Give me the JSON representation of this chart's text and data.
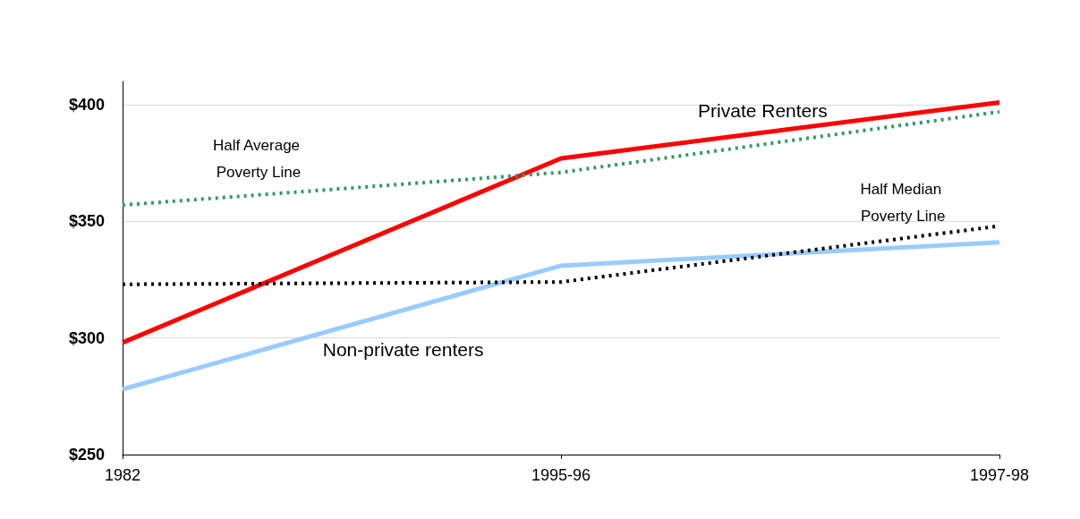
{
  "chart_data": {
    "type": "line",
    "categories": [
      "1982",
      "1995-96",
      "1997-98"
    ],
    "series": [
      {
        "name": "Private Renters",
        "color": "#ff0000",
        "values": [
          298,
          377,
          401
        ],
        "line_style": "solid"
      },
      {
        "name": "Non-private renters",
        "color": "#99ccff",
        "values": [
          278,
          331,
          341
        ],
        "line_style": "solid"
      },
      {
        "name": "Half Average Poverty Line",
        "color": "#339966",
        "values": [
          357,
          371,
          397
        ],
        "line_style": "dotted"
      },
      {
        "name": "Half Median Poverty Line",
        "color": "#000000",
        "values": [
          323,
          324,
          348
        ],
        "line_style": "dotted"
      }
    ],
    "ylim": [
      250,
      410
    ],
    "yticks": [
      {
        "value": 250,
        "label": "$250"
      },
      {
        "value": 300,
        "label": "$300"
      },
      {
        "value": 350,
        "label": "$350"
      },
      {
        "value": 400,
        "label": "$400"
      }
    ],
    "grid": "y",
    "legend": false,
    "marker": "none"
  }
}
